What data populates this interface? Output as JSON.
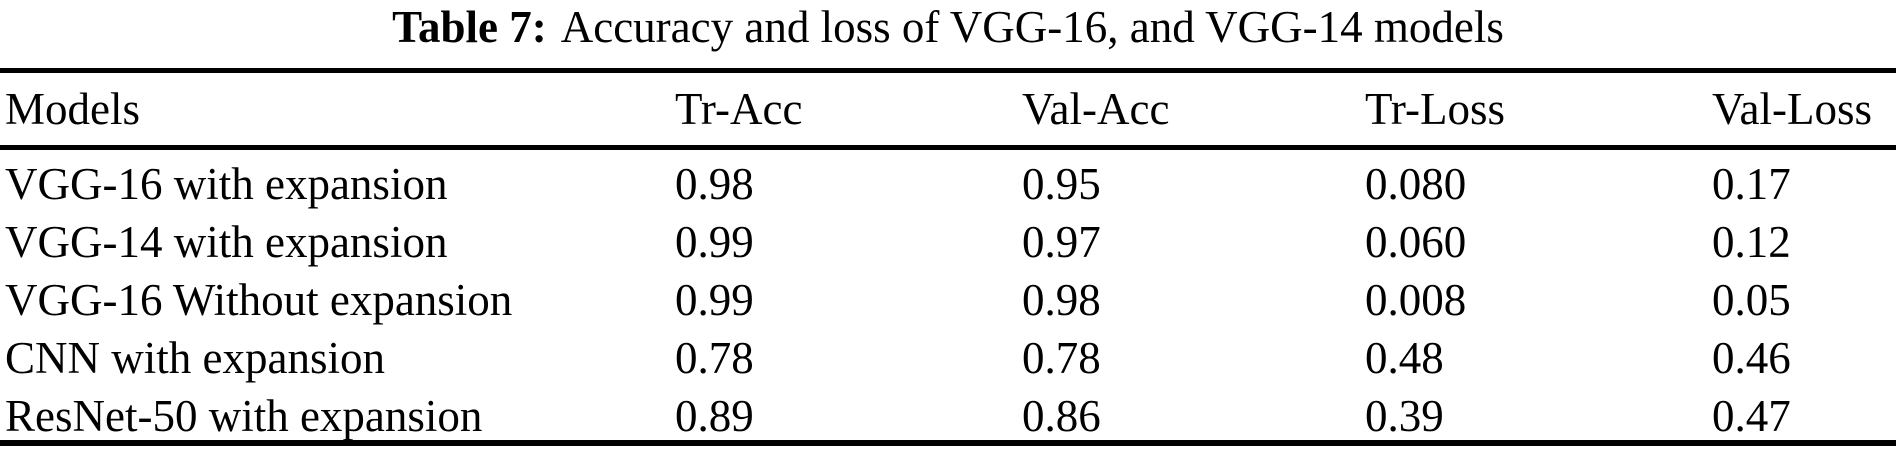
{
  "caption": {
    "label": "Table 7:",
    "rest": "Accuracy and loss of VGG-16, and VGG-14 models"
  },
  "chart_data": {
    "type": "table",
    "title": "Table 7: Accuracy and loss of VGG-16, and VGG-14 models",
    "columns": [
      "Models",
      "Tr-Acc",
      "Val-Acc",
      "Tr-Loss",
      "Val-Loss"
    ],
    "rows": [
      [
        "VGG-16 with expansion",
        "0.98",
        "0.95",
        "0.080",
        "0.17"
      ],
      [
        "VGG-14 with expansion",
        "0.99",
        "0.97",
        "0.060",
        "0.12"
      ],
      [
        "VGG-16 Without expansion",
        "0.99",
        "0.98",
        "0.008",
        "0.05"
      ],
      [
        "CNN with expansion",
        "0.78",
        "0.78",
        "0.48",
        "0.46"
      ],
      [
        "ResNet-50 with expansion",
        "0.89",
        "0.86",
        "0.39",
        "0.47"
      ]
    ]
  },
  "colors": {
    "text": "#000000",
    "background": "#ffffff",
    "rule": "#000000"
  }
}
